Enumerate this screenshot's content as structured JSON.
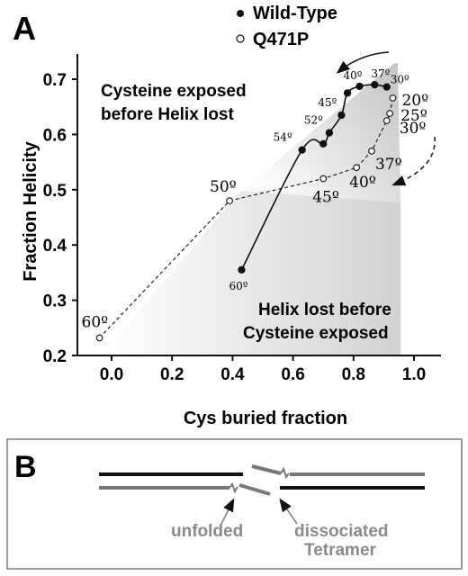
{
  "panel_a": {
    "label": "A",
    "legend": [
      "Wild-Type",
      "Q471P"
    ],
    "region_upper": [
      "Cysteine exposed",
      "before Helix lost"
    ],
    "region_lower": [
      "Helix lost before",
      "Cysteine exposed"
    ]
  },
  "panel_b": {
    "label": "B",
    "label_unfolded": "unfolded",
    "label_dissociated": [
      "dissociated",
      "Tetramer"
    ]
  },
  "chart_data": {
    "type": "scatter",
    "xlabel": "Cys buried fraction",
    "ylabel": "Fraction Helicity",
    "xlim": [
      -0.15,
      1.1
    ],
    "ylim": [
      0.2,
      0.75
    ],
    "xticks": [
      "0.0",
      "0.2",
      "0.4",
      "0.6",
      "0.8",
      "1.0"
    ],
    "yticks": [
      "0.2",
      "0.3",
      "0.4",
      "0.5",
      "0.6",
      "0.7"
    ],
    "grid": false,
    "legend_position": "top-right",
    "series": [
      {
        "name": "Wild-Type",
        "marker": "filled-circle",
        "line": "solid",
        "points": [
          {
            "x": 0.91,
            "y": 0.686,
            "label": "30º"
          },
          {
            "x": 0.87,
            "y": 0.69,
            "label": "37º"
          },
          {
            "x": 0.82,
            "y": 0.687,
            "label": "40º"
          },
          {
            "x": 0.78,
            "y": 0.675,
            "label": ""
          },
          {
            "x": 0.76,
            "y": 0.635,
            "label": "45º"
          },
          {
            "x": 0.72,
            "y": 0.603,
            "label": "52º"
          },
          {
            "x": 0.7,
            "y": 0.583,
            "label": ""
          },
          {
            "x": 0.63,
            "y": 0.572,
            "label": "54º"
          },
          {
            "x": 0.43,
            "y": 0.355,
            "label": "60º"
          }
        ]
      },
      {
        "name": "Q471P",
        "marker": "open-circle",
        "line": "dashed",
        "points": [
          {
            "x": 0.93,
            "y": 0.666,
            "label": "20º"
          },
          {
            "x": 0.92,
            "y": 0.638,
            "label": "25º"
          },
          {
            "x": 0.91,
            "y": 0.625,
            "label": "30º"
          },
          {
            "x": 0.86,
            "y": 0.57,
            "label": "37º"
          },
          {
            "x": 0.81,
            "y": 0.54,
            "label": "40º"
          },
          {
            "x": 0.7,
            "y": 0.52,
            "label": "45º"
          },
          {
            "x": 0.39,
            "y": 0.48,
            "label": "50º"
          },
          {
            "x": -0.04,
            "y": 0.232,
            "label": "60º"
          }
        ]
      }
    ]
  }
}
